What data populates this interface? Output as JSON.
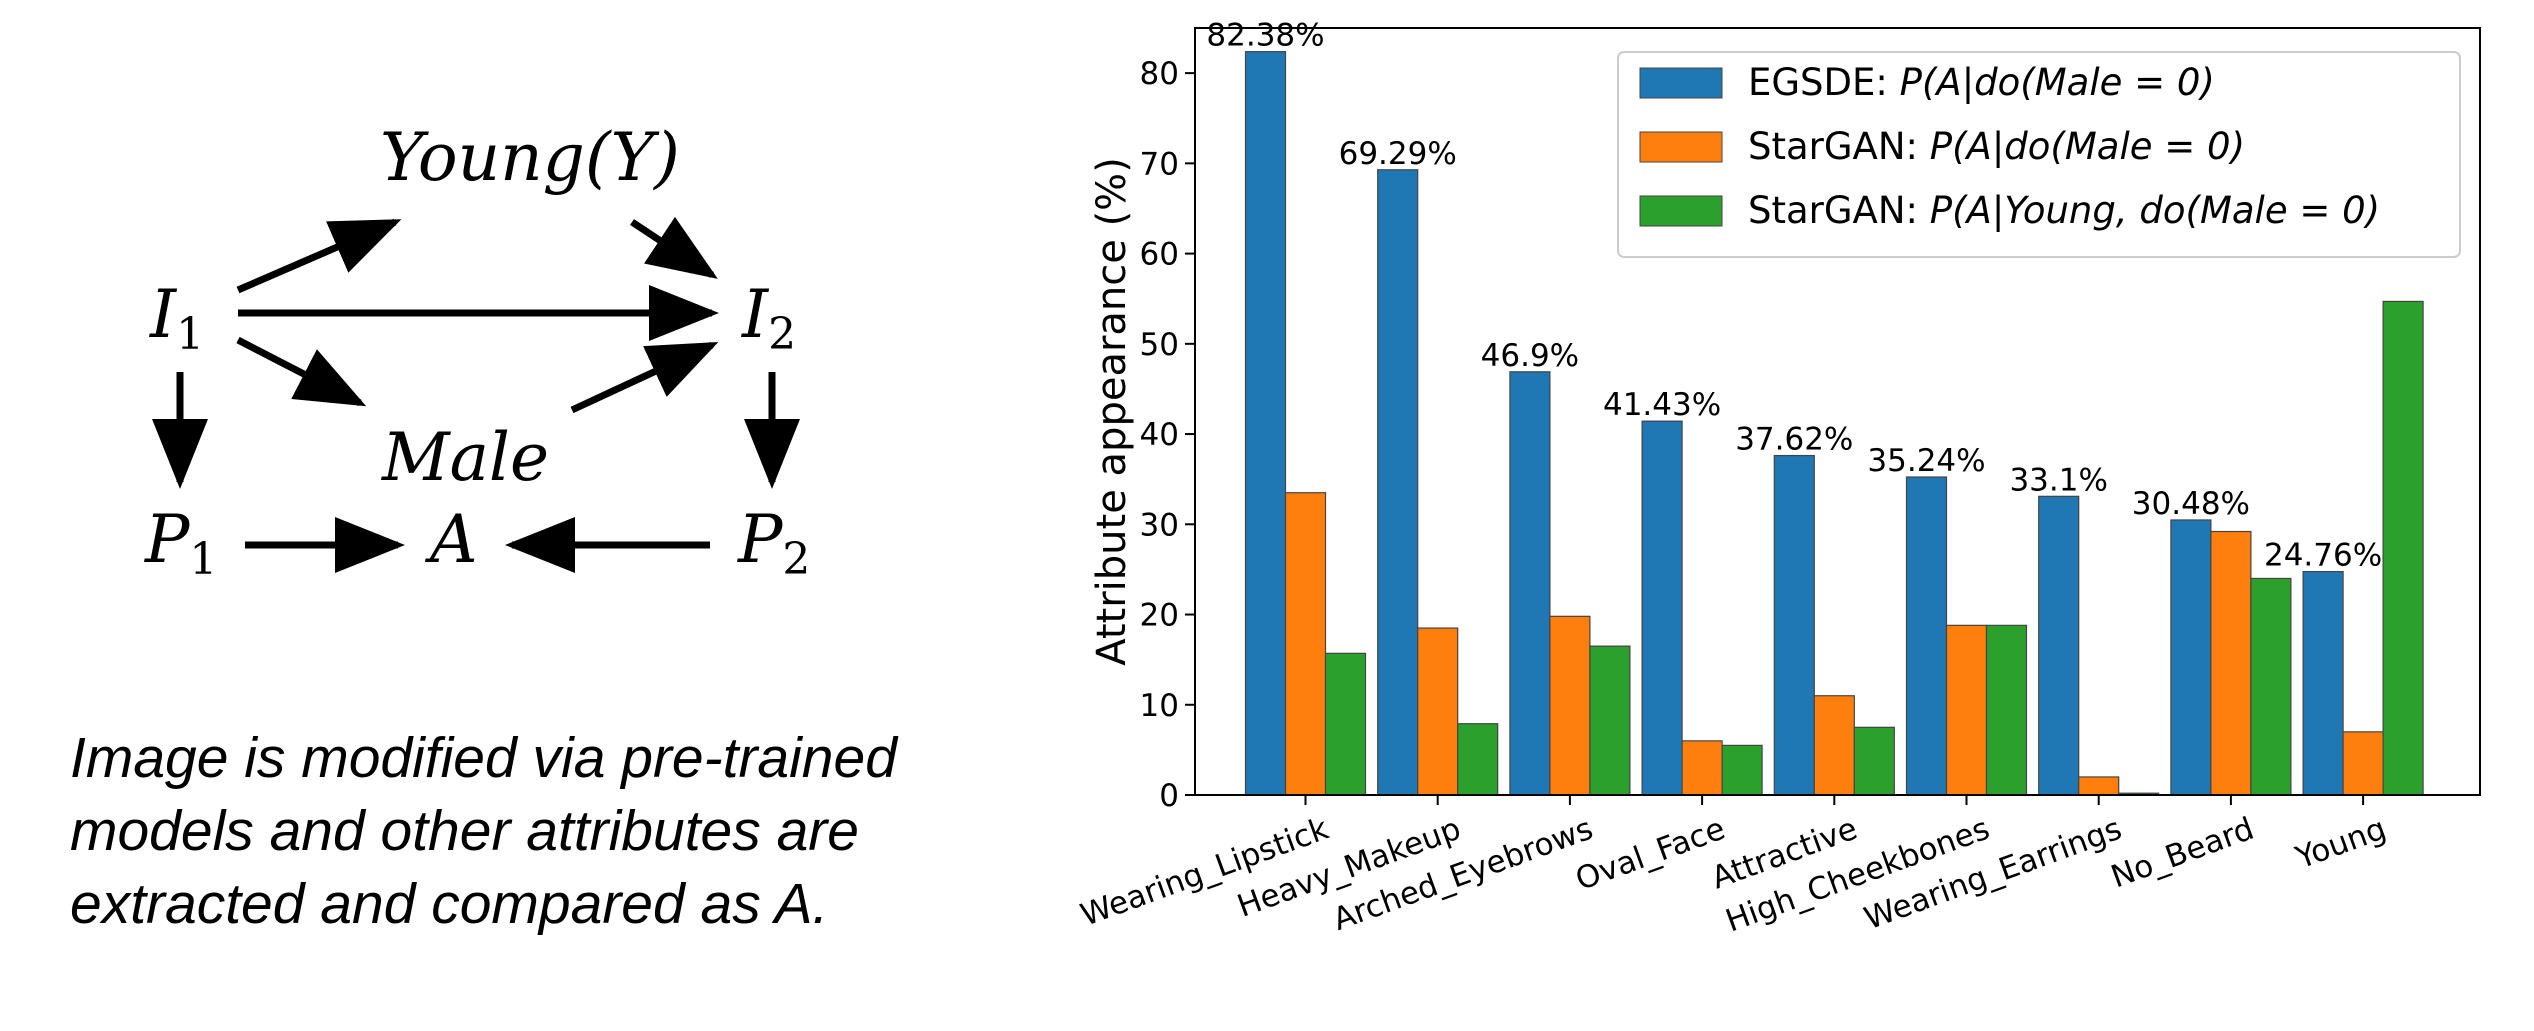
{
  "diagram": {
    "nodes": {
      "young": "Young(Y)",
      "i1": "I",
      "i1_sub": "1",
      "i2": "I",
      "i2_sub": "2",
      "male": "Male",
      "p1": "P",
      "p1_sub": "1",
      "a": "A",
      "p2": "P",
      "p2_sub": "2"
    },
    "male_color": "#e0201f"
  },
  "caption": {
    "line1": "Image is modified via pre-trained",
    "line2": "models and other attributes are",
    "line3": "extracted and compared as A."
  },
  "chart_data": {
    "type": "bar",
    "ylabel": "Attribute appearance (%)",
    "ylim": [
      0,
      85
    ],
    "yticks": [
      0,
      10,
      20,
      30,
      40,
      50,
      60,
      70,
      80
    ],
    "categories": [
      "Wearing_Lipstick",
      "Heavy_Makeup",
      "Arched_Eyebrows",
      "Oval_Face",
      "Attractive",
      "High_Cheekbones",
      "Wearing_Earrings",
      "No_Beard",
      "Young"
    ],
    "series": [
      {
        "legend_prefix": "EGSDE: ",
        "legend_formula": "P(A|do(Male = 0)",
        "color": "#1f77b4",
        "values": [
          82.38,
          69.29,
          46.9,
          41.43,
          37.62,
          35.24,
          33.1,
          30.48,
          24.76
        ]
      },
      {
        "legend_prefix": "StarGAN: ",
        "legend_formula": "P(A|do(Male = 0)",
        "color": "#ff7f0e",
        "values": [
          33.5,
          18.5,
          19.8,
          6.0,
          11.0,
          18.8,
          2.0,
          29.2,
          7.0
        ]
      },
      {
        "legend_prefix": "StarGAN: ",
        "legend_formula": "P(A|Young, do(Male = 0)",
        "color": "#2ca02c",
        "values": [
          15.7,
          7.9,
          16.5,
          5.5,
          7.5,
          18.8,
          0.2,
          24.0,
          54.7
        ]
      }
    ],
    "data_labels": [
      "82.38%",
      "69.29%",
      "46.9%",
      "41.43%",
      "37.62%",
      "35.24%",
      "33.1%",
      "30.48%",
      "24.76%"
    ],
    "legend_position": "top-right",
    "grid": false
  }
}
